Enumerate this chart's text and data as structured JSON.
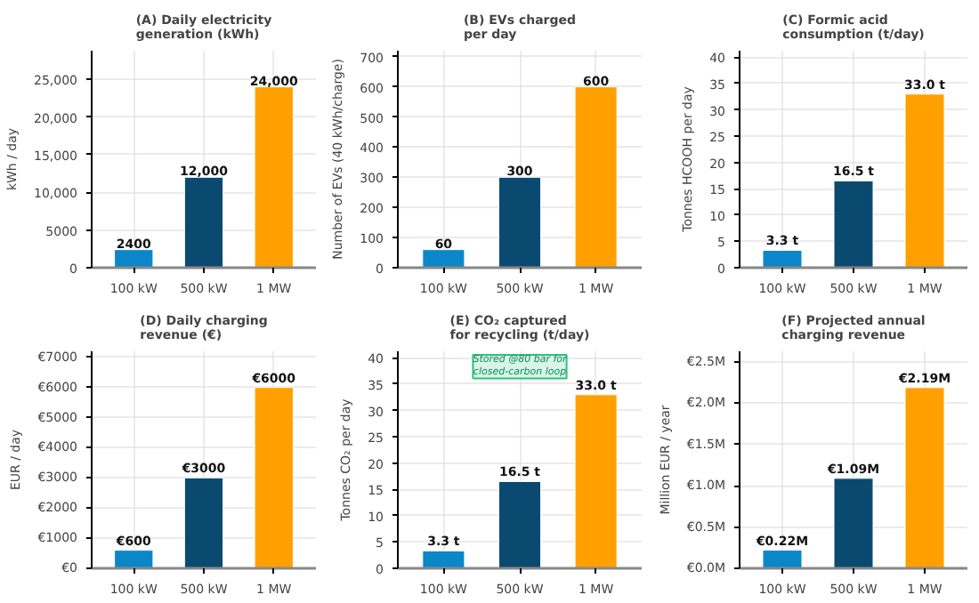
{
  "chart_data": [
    {
      "type": "bar",
      "title": "(A) Daily electricity\ngeneration (kWh)",
      "ylabel": "kWh / day",
      "categories": [
        "100 kW",
        "500 kW",
        "1 MW"
      ],
      "values": [
        2400,
        12000,
        24000
      ],
      "colors": [
        "#0b87c9",
        "#0b4a70",
        "#ffa000"
      ],
      "value_labels": [
        "2400",
        "12,000",
        "24,000"
      ],
      "ylim": [
        0,
        28800
      ],
      "yticks": [
        0,
        5000,
        {
          "value": 10000,
          "label": "10,000"
        },
        {
          "value": 15000,
          "label": "15,000"
        },
        {
          "value": 20000,
          "label": "20,000"
        },
        {
          "value": 25000,
          "label": "25,000"
        }
      ],
      "grid": true
    },
    {
      "type": "bar",
      "title": "(B) EVs charged\nper day",
      "ylabel": "Number of EVs (40 kWh/charge)",
      "categories": [
        "100 kW",
        "500 kW",
        "1 MW"
      ],
      "values": [
        60,
        300,
        600
      ],
      "colors": [
        "#0b87c9",
        "#0b4a70",
        "#ffa000"
      ],
      "value_labels": [
        "60",
        "300",
        "600"
      ],
      "ylim": [
        0,
        720
      ],
      "yticks": [
        0,
        100,
        200,
        300,
        400,
        500,
        600,
        700
      ],
      "grid": true
    },
    {
      "type": "bar",
      "title": "(C) Formic acid\nconsumption (t/day)",
      "ylabel": "Tonnes HCOOH per day",
      "categories": [
        "100 kW",
        "500 kW",
        "1 MW"
      ],
      "values": [
        3.3,
        16.5,
        33.0
      ],
      "colors": [
        "#0b87c9",
        "#0b4a70",
        "#ffa000"
      ],
      "value_labels": [
        "3.3 t",
        "16.5 t",
        "33.0 t"
      ],
      "ylim": [
        0,
        41.25
      ],
      "yticks": [
        0,
        5,
        10,
        15,
        20,
        25,
        30,
        35,
        40
      ],
      "grid": true
    },
    {
      "type": "bar",
      "title": "(D) Daily charging\nrevenue (€)",
      "ylabel": "EUR / day",
      "categories": [
        "100 kW",
        "500 kW",
        "1 MW"
      ],
      "values": [
        600,
        3000,
        6000
      ],
      "colors": [
        "#0b87c9",
        "#0b4a70",
        "#ffa000"
      ],
      "value_labels": [
        "€600",
        "€3000",
        "€6000"
      ],
      "ylim": [
        0,
        7200
      ],
      "yticks": [
        {
          "value": 0,
          "label": "€0"
        },
        {
          "value": 1000,
          "label": "€1000"
        },
        {
          "value": 2000,
          "label": "€2000"
        },
        {
          "value": 3000,
          "label": "€3000"
        },
        {
          "value": 4000,
          "label": "€4000"
        },
        {
          "value": 5000,
          "label": "€5000"
        },
        {
          "value": 6000,
          "label": "€6000"
        },
        {
          "value": 7000,
          "label": "€7000"
        }
      ],
      "grid": true
    },
    {
      "type": "bar",
      "title": "(E) CO₂ captured\nfor recycling (t/day)",
      "ylabel": "Tonnes CO₂ per day",
      "categories": [
        "100 kW",
        "500 kW",
        "1 MW"
      ],
      "values": [
        3.3,
        16.5,
        33.0
      ],
      "colors": [
        "#0b87c9",
        "#0b4a70",
        "#ffa000"
      ],
      "value_labels": [
        "3.3 t",
        "16.5 t",
        "33.0 t"
      ],
      "ylim": [
        0,
        41.25
      ],
      "yticks": [
        0,
        5,
        10,
        15,
        20,
        25,
        30,
        35,
        40
      ],
      "grid": true,
      "annotations": [
        "Stored @80 bar for\nclosed-carbon loop"
      ]
    },
    {
      "type": "bar",
      "title": "(F) Projected annual\ncharging revenue",
      "ylabel": "Million EUR / year",
      "categories": [
        "100 kW",
        "500 kW",
        "1 MW"
      ],
      "values": [
        0.22,
        1.09,
        2.19
      ],
      "colors": [
        "#0b87c9",
        "#0b4a70",
        "#ffa000"
      ],
      "value_labels": [
        "€0.22M",
        "€1.09M",
        "€2.19M"
      ],
      "ylim": [
        0,
        2.63
      ],
      "yticks": [
        {
          "value": 0.0,
          "label": "€0.0M"
        },
        {
          "value": 0.5,
          "label": "€0.5M"
        },
        {
          "value": 1.0,
          "label": "€1.0M"
        },
        {
          "value": 1.5,
          "label": "€1.5M"
        },
        {
          "value": 2.0,
          "label": "€2.0M"
        },
        {
          "value": 2.5,
          "label": "€2.5M"
        }
      ],
      "grid": true
    }
  ]
}
